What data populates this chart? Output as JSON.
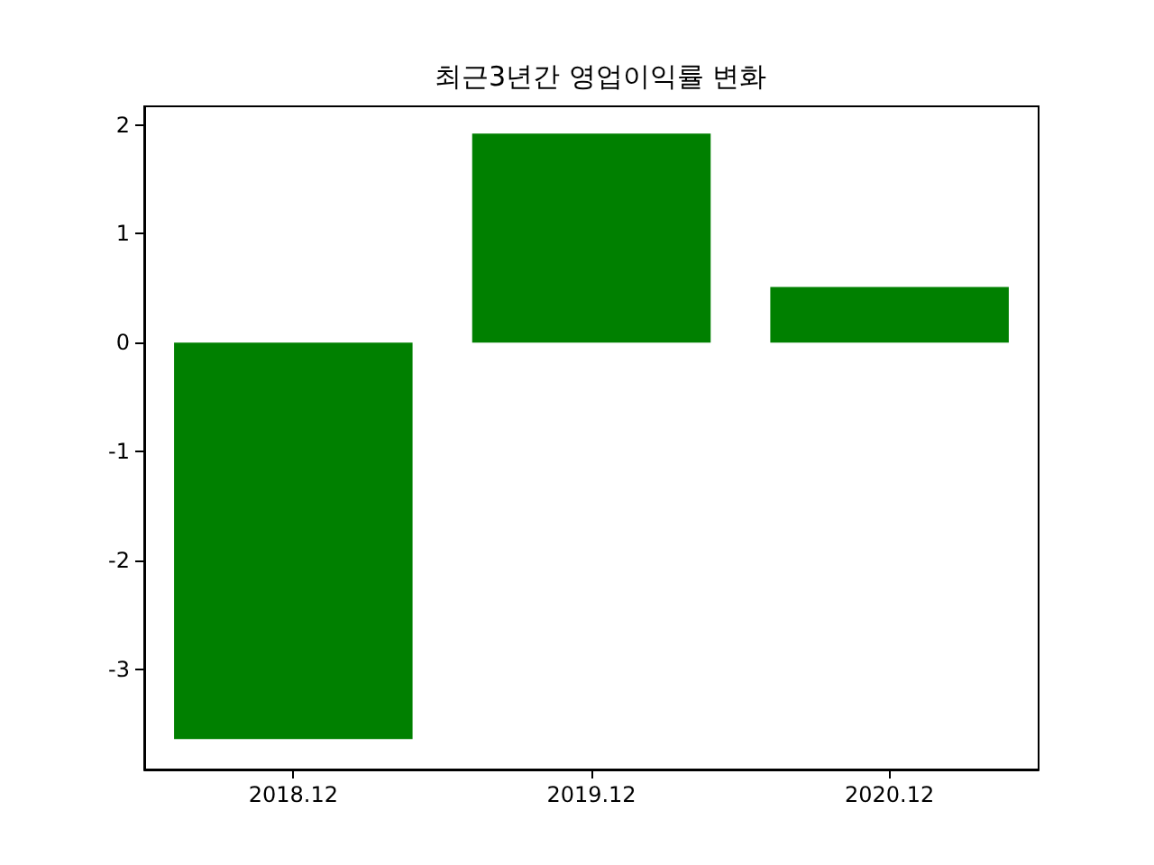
{
  "chart_data": {
    "type": "bar",
    "title": "최근3년간 영업이익률 변화",
    "categories": [
      "2018.12",
      "2019.12",
      "2020.12"
    ],
    "values": [
      -3.64,
      1.92,
      0.51
    ],
    "color": "#008000",
    "ylim": [
      -3.92,
      2.17
    ],
    "yticks": [
      -3,
      -2,
      -1,
      0,
      1,
      2
    ],
    "grid": false
  }
}
